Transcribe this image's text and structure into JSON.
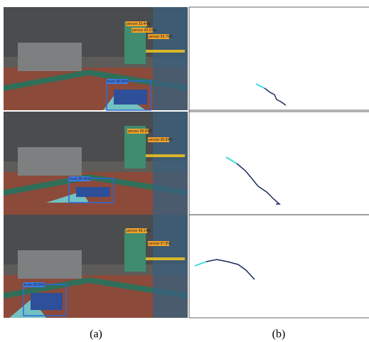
{
  "rows": [
    {
      "detections": [
        "person 33.44%",
        "person 99.93%",
        "person 95.76%",
        "truck 99.89%"
      ]
    },
    {
      "detections": [
        "person 99.65%",
        "person 96.84%",
        "truck 99.46%"
      ]
    },
    {
      "detections": [
        "person 49.14%",
        "person 97.8%",
        "truck 99.89%"
      ]
    }
  ],
  "captions": [
    "(a)",
    "(b)"
  ]
}
